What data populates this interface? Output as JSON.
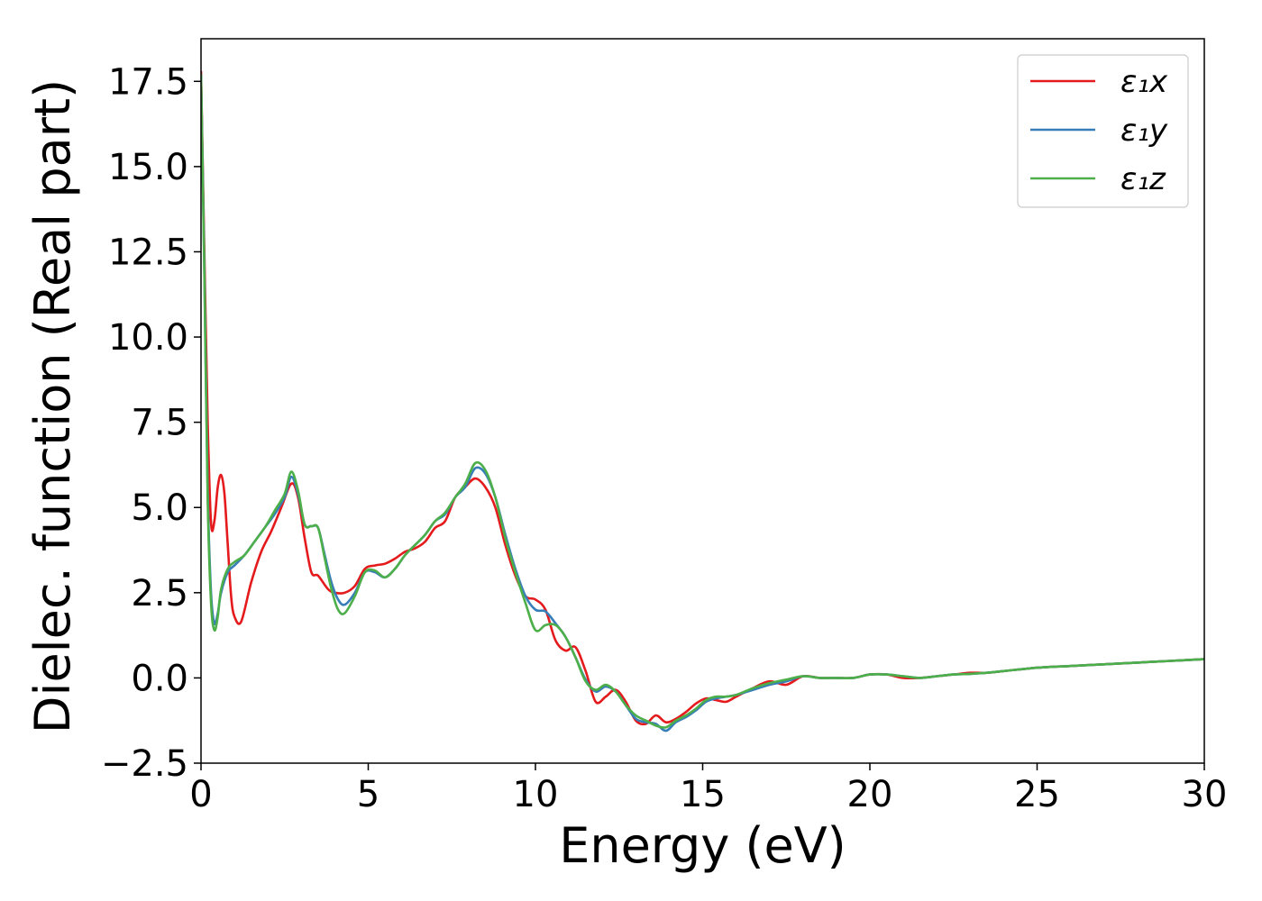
{
  "chart_data": {
    "type": "line",
    "xlabel": "Energy (eV)",
    "ylabel": "Dielec. function (Real part)",
    "xlim": [
      0,
      30
    ],
    "ylim": [
      -2.5,
      18.75
    ],
    "xticks": [
      0,
      5,
      10,
      15,
      20,
      25,
      30
    ],
    "xtick_labels": [
      "0",
      "5",
      "10",
      "15",
      "20",
      "25",
      "30"
    ],
    "yticks": [
      -2.5,
      0.0,
      2.5,
      5.0,
      7.5,
      10.0,
      12.5,
      15.0,
      17.5
    ],
    "ytick_labels": [
      "−2.5",
      "0.0",
      "2.5",
      "5.0",
      "7.5",
      "10.0",
      "12.5",
      "15.0",
      "17.5"
    ],
    "grid": false,
    "legend": "top-right",
    "series": [
      {
        "name": "ε₁x",
        "color": "#e41a1c",
        "x": [
          0.0,
          0.1,
          0.2,
          0.3,
          0.4,
          0.5,
          0.6,
          0.7,
          0.8,
          0.9,
          1.0,
          1.2,
          1.5,
          1.8,
          2.1,
          2.4,
          2.7,
          2.9,
          3.1,
          3.3,
          3.5,
          3.8,
          4.0,
          4.3,
          4.6,
          4.9,
          5.2,
          5.5,
          5.8,
          6.1,
          6.4,
          6.7,
          7.0,
          7.3,
          7.6,
          7.9,
          8.2,
          8.5,
          8.8,
          9.1,
          9.4,
          9.7,
          10.0,
          10.3,
          10.6,
          10.9,
          11.2,
          11.5,
          11.8,
          12.1,
          12.4,
          12.7,
          13.0,
          13.3,
          13.6,
          13.9,
          14.2,
          14.5,
          14.8,
          15.1,
          15.4,
          15.7,
          16.0,
          16.5,
          17.0,
          17.5,
          18.0,
          18.5,
          19.0,
          19.5,
          20.0,
          20.5,
          21.0,
          21.5,
          22.0,
          22.5,
          23.0,
          23.5,
          24.0,
          25.0,
          26.0,
          27.0,
          28.0,
          29.0,
          30.0
        ],
        "y": [
          17.8,
          12.5,
          7.5,
          4.55,
          4.6,
          5.6,
          5.95,
          5.4,
          3.9,
          2.4,
          1.8,
          1.65,
          2.8,
          3.7,
          4.3,
          5.0,
          5.7,
          5.3,
          4.1,
          3.1,
          3.0,
          2.6,
          2.5,
          2.5,
          2.7,
          3.2,
          3.3,
          3.35,
          3.5,
          3.7,
          3.8,
          4.0,
          4.4,
          4.6,
          5.3,
          5.6,
          5.85,
          5.6,
          5.0,
          3.9,
          3.0,
          2.4,
          2.3,
          2.0,
          1.1,
          0.8,
          0.9,
          0.2,
          -0.7,
          -0.55,
          -0.35,
          -0.7,
          -1.25,
          -1.35,
          -1.1,
          -1.3,
          -1.2,
          -1.0,
          -0.75,
          -0.6,
          -0.65,
          -0.7,
          -0.55,
          -0.3,
          -0.1,
          -0.2,
          0.05,
          0.0,
          0.0,
          0.0,
          0.1,
          0.1,
          0.0,
          0.0,
          0.05,
          0.1,
          0.15,
          0.15,
          0.2,
          0.3,
          0.35,
          0.4,
          0.45,
          0.5,
          0.55
        ]
      },
      {
        "name": "ε₁y",
        "color": "#377eb8",
        "x": [
          0.0,
          0.1,
          0.2,
          0.3,
          0.4,
          0.5,
          0.6,
          0.8,
          1.0,
          1.3,
          1.6,
          1.9,
          2.2,
          2.5,
          2.7,
          2.9,
          3.1,
          3.3,
          3.5,
          3.7,
          3.9,
          4.1,
          4.3,
          4.6,
          4.9,
          5.2,
          5.5,
          5.8,
          6.1,
          6.4,
          6.7,
          7.0,
          7.3,
          7.6,
          7.9,
          8.2,
          8.5,
          8.8,
          9.1,
          9.4,
          9.7,
          10.0,
          10.3,
          10.6,
          10.9,
          11.2,
          11.5,
          11.8,
          12.1,
          12.4,
          12.7,
          13.0,
          13.3,
          13.6,
          13.9,
          14.2,
          14.5,
          14.8,
          15.1,
          15.4,
          15.7,
          16.0,
          16.5,
          17.0,
          17.5,
          18.0,
          18.5,
          19.0,
          19.5,
          20.0,
          20.5,
          21.0,
          21.5,
          22.0,
          22.5,
          23.0,
          23.5,
          24.0,
          25.0,
          26.0,
          27.0,
          28.0,
          29.0,
          30.0
        ],
        "y": [
          17.7,
          12.0,
          5.5,
          2.5,
          1.6,
          1.9,
          2.5,
          3.1,
          3.3,
          3.6,
          4.0,
          4.4,
          4.8,
          5.3,
          5.9,
          5.4,
          4.5,
          4.45,
          4.4,
          3.6,
          2.8,
          2.3,
          2.15,
          2.5,
          3.1,
          3.1,
          2.95,
          3.2,
          3.6,
          3.9,
          4.2,
          4.6,
          4.8,
          5.3,
          5.6,
          6.15,
          6.0,
          5.3,
          4.2,
          3.2,
          2.4,
          2.0,
          1.95,
          1.6,
          1.2,
          0.6,
          -0.05,
          -0.4,
          -0.25,
          -0.4,
          -0.8,
          -1.2,
          -1.3,
          -1.35,
          -1.55,
          -1.3,
          -1.15,
          -0.95,
          -0.7,
          -0.6,
          -0.55,
          -0.5,
          -0.35,
          -0.2,
          -0.1,
          0.05,
          0.0,
          0.0,
          0.0,
          0.1,
          0.1,
          0.05,
          0.0,
          0.05,
          0.1,
          0.12,
          0.15,
          0.2,
          0.3,
          0.35,
          0.4,
          0.45,
          0.5,
          0.55
        ]
      },
      {
        "name": "ε₁z",
        "color": "#4daf4a",
        "x": [
          0.0,
          0.1,
          0.2,
          0.3,
          0.4,
          0.5,
          0.6,
          0.8,
          1.0,
          1.3,
          1.6,
          1.9,
          2.2,
          2.5,
          2.7,
          2.9,
          3.1,
          3.3,
          3.5,
          3.7,
          3.9,
          4.1,
          4.3,
          4.6,
          4.9,
          5.2,
          5.5,
          5.8,
          6.1,
          6.4,
          6.7,
          7.0,
          7.3,
          7.6,
          7.9,
          8.2,
          8.5,
          8.8,
          9.1,
          9.4,
          9.7,
          10.0,
          10.3,
          10.6,
          10.9,
          11.2,
          11.5,
          11.8,
          12.1,
          12.4,
          12.7,
          13.0,
          13.3,
          13.6,
          13.9,
          14.2,
          14.5,
          14.8,
          15.1,
          15.4,
          15.7,
          16.0,
          16.5,
          17.0,
          17.5,
          18.0,
          18.5,
          19.0,
          19.5,
          20.0,
          20.5,
          21.0,
          21.5,
          22.0,
          22.5,
          23.0,
          23.5,
          24.0,
          25.0,
          26.0,
          27.0,
          28.0,
          29.0,
          30.0
        ],
        "y": [
          17.7,
          11.8,
          5.2,
          2.2,
          1.4,
          1.8,
          2.6,
          3.2,
          3.4,
          3.6,
          4.0,
          4.4,
          4.9,
          5.4,
          6.05,
          5.5,
          4.5,
          4.45,
          4.4,
          3.5,
          2.6,
          2.0,
          1.9,
          2.4,
          3.1,
          3.15,
          2.95,
          3.2,
          3.6,
          3.9,
          4.2,
          4.6,
          4.85,
          5.3,
          5.7,
          6.3,
          6.1,
          5.3,
          4.1,
          3.1,
          2.2,
          1.4,
          1.55,
          1.55,
          1.2,
          0.6,
          -0.1,
          -0.35,
          -0.2,
          -0.4,
          -0.8,
          -1.1,
          -1.25,
          -1.4,
          -1.45,
          -1.25,
          -1.1,
          -0.9,
          -0.65,
          -0.55,
          -0.55,
          -0.5,
          -0.3,
          -0.15,
          -0.05,
          0.05,
          0.0,
          0.0,
          0.0,
          0.1,
          0.1,
          0.05,
          0.0,
          0.05,
          0.1,
          0.12,
          0.15,
          0.2,
          0.3,
          0.35,
          0.4,
          0.45,
          0.5,
          0.55
        ]
      }
    ]
  }
}
